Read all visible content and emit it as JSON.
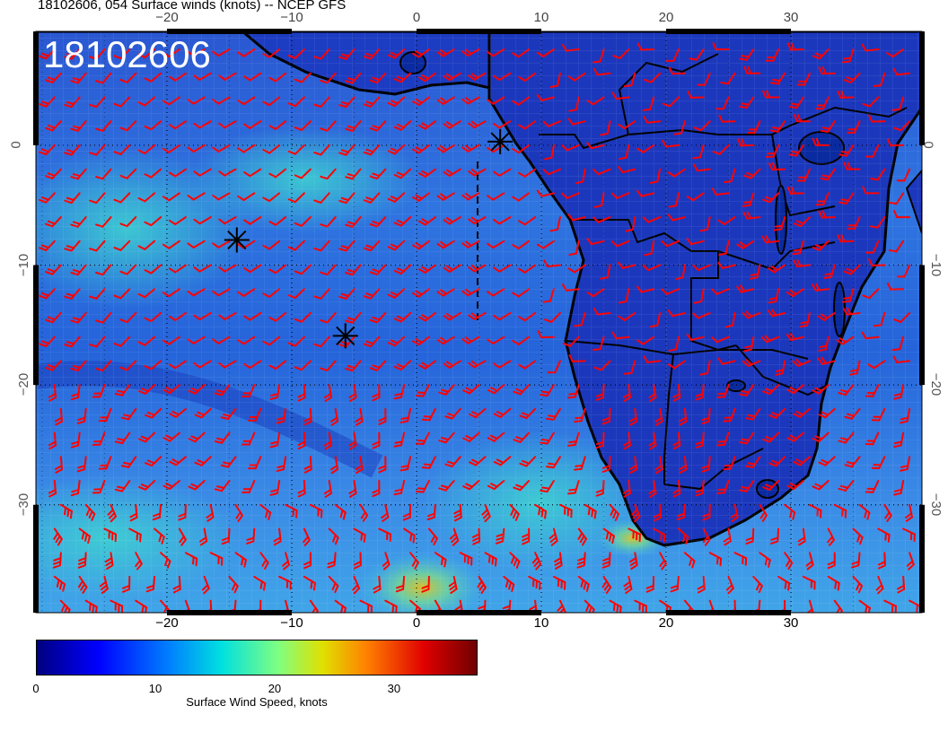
{
  "title": "18102606, 054 Surface winds (knots) -- NCEP GFS",
  "stamp": "18102606",
  "lon_labels": [
    "−20",
    "−10",
    "0",
    "10",
    "20",
    "30"
  ],
  "lon_values": [
    -20,
    -10,
    0,
    10,
    20,
    30
  ],
  "lat_labels": [
    "0",
    "−10",
    "−20",
    "−30"
  ],
  "lat_values": [
    0,
    -10,
    -20,
    -30
  ],
  "map_extent": {
    "lon_min": -30.5,
    "lon_max": 40.5,
    "lat_min": -39,
    "lat_max": 9.5
  },
  "colorbar": {
    "label": "Surface Wind Speed, knots",
    "tick_labels": [
      "0",
      "10",
      "20",
      "30"
    ],
    "tick_values": [
      0,
      10,
      20,
      30
    ],
    "range": [
      0,
      37
    ],
    "colormap": [
      "#00007f",
      "#0000ff",
      "#007fff",
      "#00ffff",
      "#7fff7f",
      "#ffff00",
      "#ff7f00",
      "#ff0000",
      "#7f0000"
    ]
  },
  "colors": {
    "barb": "#ff0000",
    "ocean": "#2a5ed6",
    "land": "#1d3fc4",
    "coast": "#000000"
  },
  "markers": [
    {
      "lon": -14.4,
      "lat": -7.9,
      "symbol": "asterisk"
    },
    {
      "lon": -5.7,
      "lat": -15.9,
      "symbol": "asterisk"
    },
    {
      "lon": 6.7,
      "lat": 0.3,
      "symbol": "asterisk"
    }
  ]
}
